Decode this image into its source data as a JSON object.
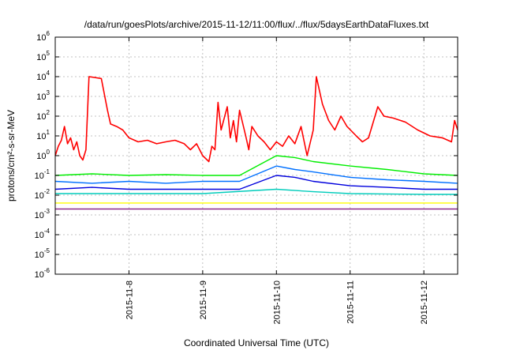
{
  "chart_data": {
    "type": "line",
    "title": "/data/run/goesPlots/archive/2015-11-12/11:00/flux/../flux/5daysEarthDataFluxes.txt",
    "xlabel": "Coordinated Universal Time (UTC)",
    "ylabel": "protons/cm²-s-sr-MeV",
    "yscale": "log",
    "ylim": [
      1e-06,
      1000000.0
    ],
    "xlim": [
      "2015-11-07T00:00",
      "2015-11-12T11:00"
    ],
    "grid": true,
    "x_ticks": [
      "2015-11-8",
      "2015-11-9",
      "2015-11-10",
      "2015-11-11",
      "2015-11-12"
    ],
    "y_ticks": [
      {
        "base": "10",
        "exp": "6"
      },
      {
        "base": "10",
        "exp": "5"
      },
      {
        "base": "10",
        "exp": "4"
      },
      {
        "base": "10",
        "exp": "3"
      },
      {
        "base": "10",
        "exp": "2"
      },
      {
        "base": "10",
        "exp": "1"
      },
      {
        "base": "10",
        "exp": "0"
      },
      {
        "base": "10",
        "exp": "-1"
      },
      {
        "base": "10",
        "exp": "-2"
      },
      {
        "base": "10",
        "exp": "-3"
      },
      {
        "base": "10",
        "exp": "-4"
      },
      {
        "base": "10",
        "exp": "-5"
      },
      {
        "base": "10",
        "exp": "-6"
      }
    ],
    "series": [
      {
        "color": "#ff0000",
        "points": [
          [
            "2015-11-07T00:00",
            1.0
          ],
          [
            "2015-11-07T01:00",
            3.0
          ],
          [
            "2015-11-07T02:00",
            6.0
          ],
          [
            "2015-11-07T03:00",
            30.0
          ],
          [
            "2015-11-07T04:00",
            4.0
          ],
          [
            "2015-11-07T05:00",
            8.0
          ],
          [
            "2015-11-07T06:00",
            2.0
          ],
          [
            "2015-11-07T07:00",
            5.0
          ],
          [
            "2015-11-07T08:00",
            1.0
          ],
          [
            "2015-11-07T09:00",
            0.6
          ],
          [
            "2015-11-07T10:00",
            2.0
          ],
          [
            "2015-11-07T11:00",
            10000.0
          ],
          [
            "2015-11-07T15:00",
            8000.0
          ],
          [
            "2015-11-07T17:00",
            200.0
          ],
          [
            "2015-11-07T18:00",
            40.0
          ],
          [
            "2015-11-07T20:00",
            30.0
          ],
          [
            "2015-11-07T22:00",
            20.0
          ],
          [
            "2015-11-08T00:00",
            8.0
          ],
          [
            "2015-11-08T03:00",
            5.0
          ],
          [
            "2015-11-08T06:00",
            6.0
          ],
          [
            "2015-11-08T09:00",
            4.0
          ],
          [
            "2015-11-08T12:00",
            5.0
          ],
          [
            "2015-11-08T15:00",
            6.0
          ],
          [
            "2015-11-08T18:00",
            4.0
          ],
          [
            "2015-11-08T20:00",
            2.0
          ],
          [
            "2015-11-08T22:00",
            4.0
          ],
          [
            "2015-11-09T00:00",
            1.0
          ],
          [
            "2015-11-09T02:00",
            0.5
          ],
          [
            "2015-11-09T03:00",
            3.0
          ],
          [
            "2015-11-09T04:00",
            2.0
          ],
          [
            "2015-11-09T05:00",
            500.0
          ],
          [
            "2015-11-09T06:00",
            20.0
          ],
          [
            "2015-11-09T08:00",
            300.0
          ],
          [
            "2015-11-09T09:00",
            8.0
          ],
          [
            "2015-11-09T10:00",
            60.0
          ],
          [
            "2015-11-09T11:00",
            5.0
          ],
          [
            "2015-11-09T12:00",
            200.0
          ],
          [
            "2015-11-09T14:00",
            10.0
          ],
          [
            "2015-11-09T15:00",
            2.0
          ],
          [
            "2015-11-09T16:00",
            30.0
          ],
          [
            "2015-11-09T18:00",
            10.0
          ],
          [
            "2015-11-09T20:00",
            5.0
          ],
          [
            "2015-11-09T22:00",
            2.0
          ],
          [
            "2015-11-10T00:00",
            5.0
          ],
          [
            "2015-11-10T02:00",
            3.0
          ],
          [
            "2015-11-10T04:00",
            10.0
          ],
          [
            "2015-11-10T06:00",
            4.0
          ],
          [
            "2015-11-10T08:00",
            30.0
          ],
          [
            "2015-11-10T10:00",
            1.0
          ],
          [
            "2015-11-10T12:00",
            20.0
          ],
          [
            "2015-11-10T13:00",
            10000.0
          ],
          [
            "2015-11-10T15:00",
            400.0
          ],
          [
            "2015-11-10T17:00",
            60.0
          ],
          [
            "2015-11-10T19:00",
            20.0
          ],
          [
            "2015-11-10T21:00",
            100.0
          ],
          [
            "2015-11-10T23:00",
            30.0
          ],
          [
            "2015-11-11T02:00",
            10.0
          ],
          [
            "2015-11-11T04:00",
            5.0
          ],
          [
            "2015-11-11T06:00",
            8.0
          ],
          [
            "2015-11-11T09:00",
            300.0
          ],
          [
            "2015-11-11T11:00",
            100.0
          ],
          [
            "2015-11-11T14:00",
            80.0
          ],
          [
            "2015-11-11T18:00",
            50.0
          ],
          [
            "2015-11-11T22:00",
            20.0
          ],
          [
            "2015-11-12T02:00",
            10.0
          ],
          [
            "2015-11-12T06:00",
            8.0
          ],
          [
            "2015-11-12T09:00",
            5.0
          ],
          [
            "2015-11-12T10:00",
            60.0
          ],
          [
            "2015-11-12T11:00",
            20.0
          ]
        ]
      },
      {
        "color": "#00ee00",
        "points": [
          [
            "2015-11-07T00:00",
            0.1
          ],
          [
            "2015-11-07T12:00",
            0.12
          ],
          [
            "2015-11-08T00:00",
            0.1
          ],
          [
            "2015-11-08T12:00",
            0.11
          ],
          [
            "2015-11-09T00:00",
            0.1
          ],
          [
            "2015-11-09T12:00",
            0.1
          ],
          [
            "2015-11-10T00:00",
            1.0
          ],
          [
            "2015-11-10T06:00",
            0.8
          ],
          [
            "2015-11-10T12:00",
            0.5
          ],
          [
            "2015-11-11T00:00",
            0.3
          ],
          [
            "2015-11-11T12:00",
            0.2
          ],
          [
            "2015-11-12T00:00",
            0.12
          ],
          [
            "2015-11-12T11:00",
            0.1
          ]
        ]
      },
      {
        "color": "#0070ff",
        "points": [
          [
            "2015-11-07T00:00",
            0.05
          ],
          [
            "2015-11-07T12:00",
            0.04
          ],
          [
            "2015-11-08T00:00",
            0.05
          ],
          [
            "2015-11-08T12:00",
            0.04
          ],
          [
            "2015-11-09T00:00",
            0.05
          ],
          [
            "2015-11-09T12:00",
            0.05
          ],
          [
            "2015-11-10T00:00",
            0.3
          ],
          [
            "2015-11-10T06:00",
            0.2
          ],
          [
            "2015-11-10T12:00",
            0.15
          ],
          [
            "2015-11-11T00:00",
            0.08
          ],
          [
            "2015-11-11T12:00",
            0.06
          ],
          [
            "2015-11-12T00:00",
            0.05
          ],
          [
            "2015-11-12T11:00",
            0.04
          ]
        ]
      },
      {
        "color": "#0000dd",
        "points": [
          [
            "2015-11-07T00:00",
            0.02
          ],
          [
            "2015-11-07T12:00",
            0.025
          ],
          [
            "2015-11-08T00:00",
            0.02
          ],
          [
            "2015-11-08T12:00",
            0.02
          ],
          [
            "2015-11-09T00:00",
            0.02
          ],
          [
            "2015-11-09T12:00",
            0.02
          ],
          [
            "2015-11-10T00:00",
            0.1
          ],
          [
            "2015-11-10T06:00",
            0.08
          ],
          [
            "2015-11-10T12:00",
            0.05
          ],
          [
            "2015-11-11T00:00",
            0.03
          ],
          [
            "2015-11-11T12:00",
            0.025
          ],
          [
            "2015-11-12T00:00",
            0.02
          ],
          [
            "2015-11-12T11:00",
            0.02
          ]
        ]
      },
      {
        "color": "#00ccbb",
        "points": [
          [
            "2015-11-07T00:00",
            0.012
          ],
          [
            "2015-11-08T00:00",
            0.012
          ],
          [
            "2015-11-09T00:00",
            0.012
          ],
          [
            "2015-11-10T00:00",
            0.02
          ],
          [
            "2015-11-10T12:00",
            0.015
          ],
          [
            "2015-11-11T00:00",
            0.012
          ],
          [
            "2015-11-12T00:00",
            0.011
          ],
          [
            "2015-11-12T11:00",
            0.011
          ]
        ]
      },
      {
        "color": "#ffff00",
        "points": [
          [
            "2015-11-07T00:00",
            0.004
          ],
          [
            "2015-11-08T00:00",
            0.004
          ],
          [
            "2015-11-09T00:00",
            0.004
          ],
          [
            "2015-11-10T00:00",
            0.004
          ],
          [
            "2015-11-11T00:00",
            0.004
          ],
          [
            "2015-11-12T00:00",
            0.004
          ],
          [
            "2015-11-12T11:00",
            0.004
          ]
        ]
      },
      {
        "color": "#8b2a8b",
        "points": [
          [
            "2015-11-07T00:00",
            0.002
          ],
          [
            "2015-11-08T00:00",
            0.002
          ],
          [
            "2015-11-09T00:00",
            0.002
          ],
          [
            "2015-11-10T00:00",
            0.002
          ],
          [
            "2015-11-11T00:00",
            0.002
          ],
          [
            "2015-11-12T00:00",
            0.002
          ],
          [
            "2015-11-12T11:00",
            0.002
          ]
        ]
      }
    ]
  }
}
